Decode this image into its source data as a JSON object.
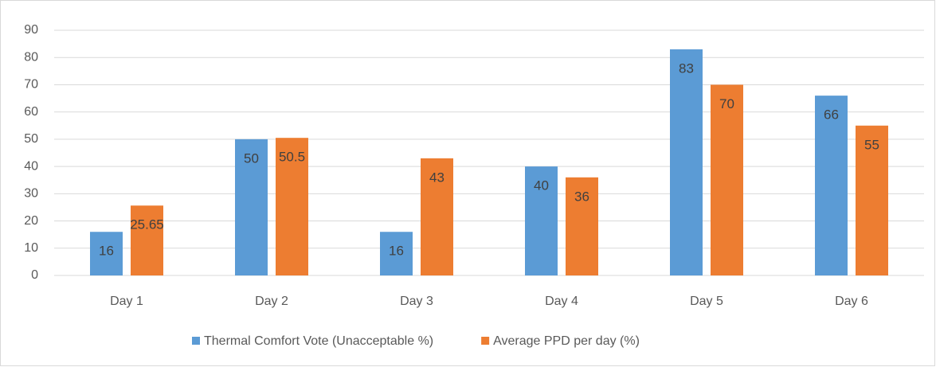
{
  "chart_data": {
    "type": "bar",
    "categories": [
      "Day 1",
      "Day 2",
      "Day 3",
      "Day 4",
      "Day 5",
      "Day 6"
    ],
    "series": [
      {
        "name": "Thermal Comfort Vote (Unacceptable %)",
        "color": "#5b9bd5",
        "values": [
          16,
          50,
          16,
          40,
          83,
          66
        ]
      },
      {
        "name": "Average PPD per day (%)",
        "color": "#ed7d31",
        "values": [
          25.65,
          50.5,
          43,
          36,
          70,
          55
        ]
      }
    ],
    "ylim": [
      0,
      90
    ],
    "yticks": [
      0,
      10,
      20,
      30,
      40,
      50,
      60,
      70,
      80,
      90
    ],
    "grid": true,
    "legend": "bottom"
  }
}
